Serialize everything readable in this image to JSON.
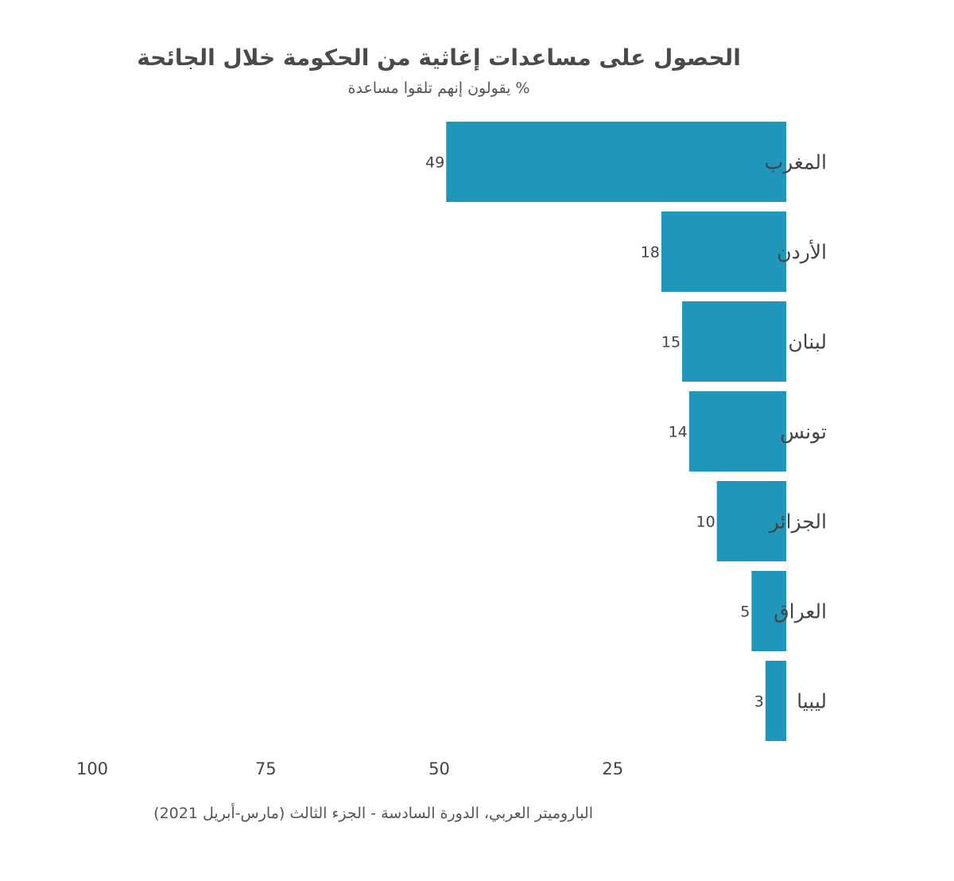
{
  "chart_data": {
    "type": "bar",
    "orientation": "horizontal",
    "title": "الحصول على مساعدات إغاثية من الحكومة خلال الجائحة",
    "subtitle": "% يقولون إنهم تلقوا مساعدة",
    "categories": [
      "المغرب",
      "الأردن",
      "لبنان",
      "تونس",
      "الجزائر",
      "العراق",
      "ليبيا"
    ],
    "values": [
      49,
      18,
      15,
      14,
      10,
      5,
      3
    ],
    "xlim": [
      0,
      100
    ],
    "x_reversed": true,
    "x_ticks": [
      100,
      75,
      50,
      25
    ],
    "grid": false,
    "bar_color": "#2196bb",
    "source": "الباروميتر العربي، الدورة السادسة - الجزء الثالث (مارس-أبريل 2021)"
  }
}
